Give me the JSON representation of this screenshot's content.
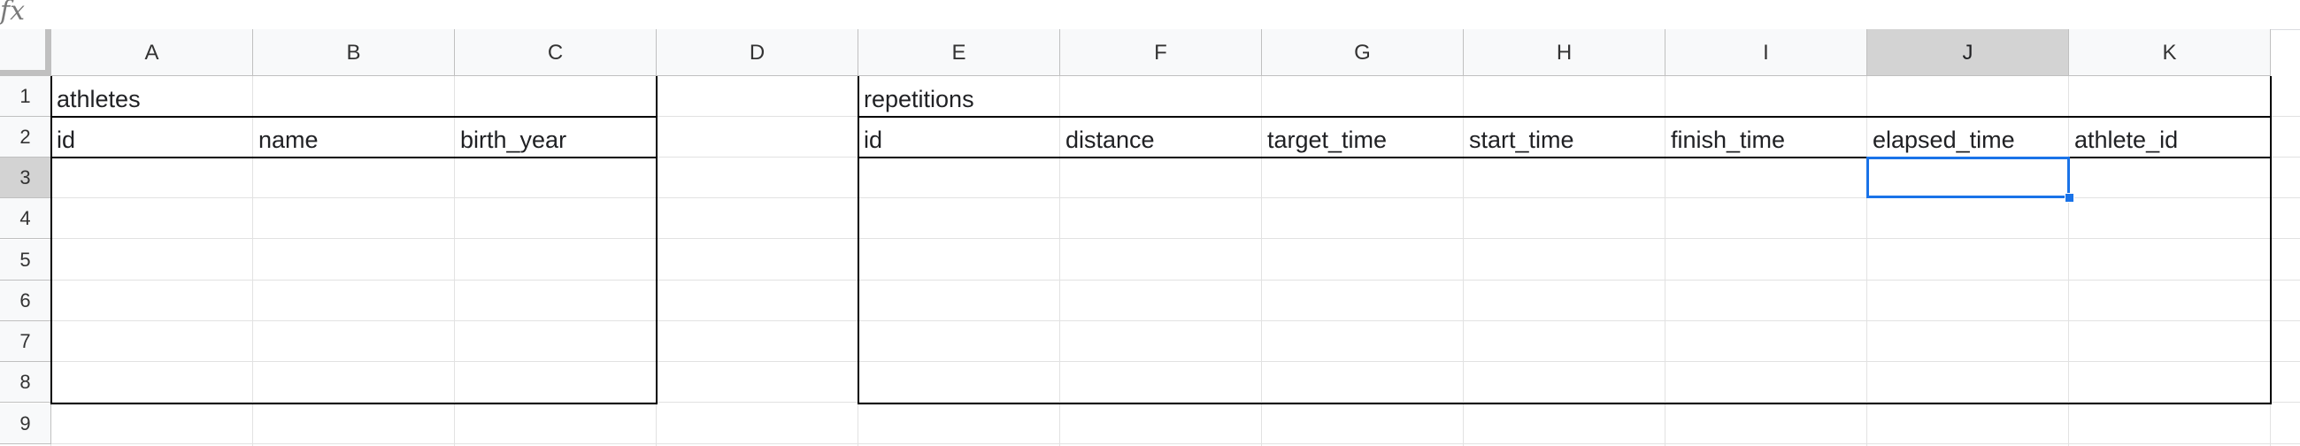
{
  "formula_bar": {
    "icon": "fx-icon",
    "value": ""
  },
  "columns": [
    "A",
    "B",
    "C",
    "D",
    "E",
    "F",
    "G",
    "H",
    "I",
    "J",
    "K"
  ],
  "rows": [
    "1",
    "2",
    "3",
    "4",
    "5",
    "6",
    "7",
    "8",
    "9"
  ],
  "selected_column": "J",
  "selected_row": "3",
  "athletes": {
    "title": "athletes",
    "headers": [
      "id",
      "name",
      "birth_year"
    ]
  },
  "repetitions": {
    "title": "repetitions",
    "headers": [
      "id",
      "distance",
      "target_time",
      "start_time",
      "finish_time",
      "elapsed_time",
      "athlete_id"
    ]
  },
  "colors": {
    "selection": "#1a73e8",
    "header_bg": "#f8f9fa",
    "selected_header_bg": "#d3d3d3"
  }
}
